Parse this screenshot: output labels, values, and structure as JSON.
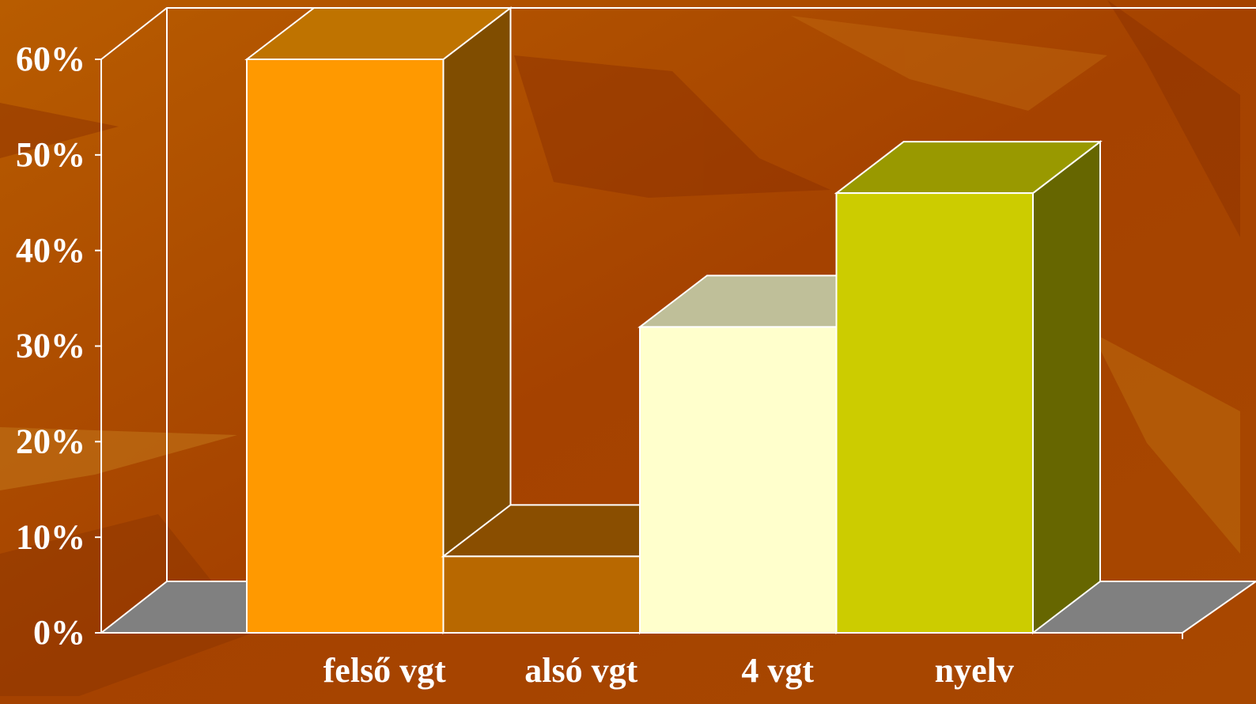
{
  "chart_data": {
    "type": "bar3d",
    "categories": [
      "felső vgt",
      "alsó vgt",
      "4 vgt",
      "nyelv"
    ],
    "values": [
      60,
      8,
      32,
      46
    ],
    "colors": [
      "#ff9900",
      "#b86800",
      "#ffffcc",
      "#cccc00"
    ],
    "ylim": [
      0,
      60
    ],
    "yticks": [
      {
        "value": 0,
        "label": "0%"
      },
      {
        "value": 10,
        "label": "10%"
      },
      {
        "value": 20,
        "label": "20%"
      },
      {
        "value": 30,
        "label": "30%"
      },
      {
        "value": 40,
        "label": "40%"
      },
      {
        "value": 50,
        "label": "50%"
      },
      {
        "value": 60,
        "label": "60%"
      }
    ]
  }
}
